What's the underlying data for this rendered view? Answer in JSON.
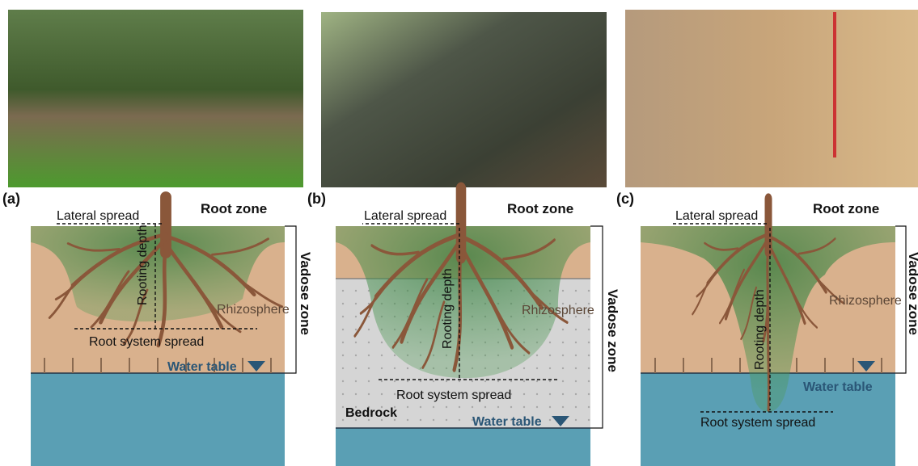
{
  "panels": [
    {
      "label": "(a)",
      "lateral": "Lateral spread",
      "root_zone": "Root zone",
      "rooting_depth": "Rooting depth",
      "rhizosphere": "Rhizosphere",
      "spread": "Root system spread",
      "water_table": "Water table",
      "vadose": "Vadose zone"
    },
    {
      "label": "(b)",
      "lateral": "Lateral spread",
      "root_zone": "Root zone",
      "rooting_depth": "Rooting depth",
      "rhizosphere": "Rhizosphere",
      "spread": "Root system spread",
      "bedrock": "Bedrock",
      "water_table": "Water table",
      "vadose": "Vadose zone"
    },
    {
      "label": "(c)",
      "lateral": "Lateral spread",
      "root_zone": "Root zone",
      "rooting_depth": "Rooting depth",
      "rhizosphere": "Rhizosphere",
      "spread": "Root system spread",
      "water_table": "Water table",
      "vadose": "Vadose zone"
    }
  ]
}
